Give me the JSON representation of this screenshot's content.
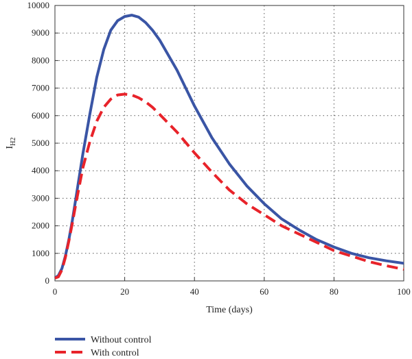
{
  "chart_data": {
    "type": "line",
    "xlabel": "Time (days)",
    "ylabel": "I",
    "ylabel_sub": "H2",
    "xlim": [
      0,
      100
    ],
    "ylim": [
      0,
      10000
    ],
    "xticks": [
      0,
      20,
      40,
      60,
      80,
      100
    ],
    "yticks": [
      0,
      1000,
      2000,
      3000,
      4000,
      5000,
      6000,
      7000,
      8000,
      9000,
      10000
    ],
    "grid": true,
    "legend_position": "bottom-left, below plot",
    "series": [
      {
        "name": "Without control",
        "color": "#3a55a5",
        "style": "solid",
        "x": [
          0,
          1,
          2,
          3,
          4,
          5,
          6,
          8,
          10,
          12,
          14,
          16,
          18,
          20,
          22,
          24,
          26,
          28,
          30,
          35,
          40,
          45,
          50,
          55,
          60,
          65,
          70,
          75,
          80,
          85,
          90,
          95,
          100
        ],
        "y": [
          100,
          200,
          450,
          900,
          1500,
          2200,
          3000,
          4600,
          6050,
          7400,
          8400,
          9100,
          9450,
          9600,
          9650,
          9580,
          9380,
          9100,
          8750,
          7650,
          6350,
          5200,
          4250,
          3450,
          2800,
          2250,
          1850,
          1500,
          1230,
          1000,
          840,
          730,
          640
        ]
      },
      {
        "name": "With control",
        "color": "#e8232a",
        "style": "dashed",
        "x": [
          0,
          1,
          2,
          3,
          4,
          5,
          6,
          8,
          10,
          12,
          14,
          16,
          18,
          20,
          22,
          24,
          26,
          28,
          30,
          35,
          40,
          45,
          50,
          55,
          60,
          65,
          70,
          75,
          80,
          85,
          90,
          95,
          100
        ],
        "y": [
          100,
          150,
          400,
          850,
          1450,
          2100,
          2800,
          4100,
          5050,
          5800,
          6300,
          6600,
          6750,
          6780,
          6750,
          6650,
          6500,
          6300,
          6050,
          5400,
          4650,
          3950,
          3300,
          2800,
          2400,
          2000,
          1700,
          1400,
          1100,
          900,
          700,
          550,
          420
        ]
      }
    ]
  }
}
